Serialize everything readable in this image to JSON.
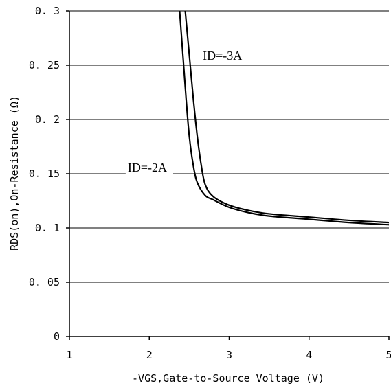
{
  "chart_data": {
    "type": "line",
    "title": "",
    "xlabel": "-VGS,Gate-to-Source Voltage (V)",
    "ylabel": "RDS(on),On-Resistance (Ω)",
    "xlim": [
      1,
      5
    ],
    "ylim": [
      0,
      0.3
    ],
    "x_ticks": [
      "1",
      "2",
      "3",
      "4",
      "5"
    ],
    "y_ticks": [
      "0",
      "0.05",
      "0.1",
      "0.15",
      "0.2",
      "0.25",
      "0.3"
    ],
    "grid": "horizontal",
    "series": [
      {
        "name": "ID=-3A",
        "x": [
          2.45,
          2.5,
          2.55,
          2.6,
          2.65,
          2.7,
          2.8,
          3.0,
          3.25,
          3.5,
          4.0,
          4.5,
          5.0
        ],
        "y": [
          0.3,
          0.26,
          0.22,
          0.185,
          0.158,
          0.14,
          0.129,
          0.121,
          0.116,
          0.113,
          0.11,
          0.107,
          0.105
        ]
      },
      {
        "name": "ID=-2A",
        "x": [
          2.38,
          2.42,
          2.46,
          2.5,
          2.55,
          2.6,
          2.7,
          2.8,
          3.0,
          3.25,
          3.5,
          4.0,
          4.5,
          5.0
        ],
        "y": [
          0.3,
          0.26,
          0.22,
          0.185,
          0.158,
          0.142,
          0.13,
          0.126,
          0.119,
          0.114,
          0.111,
          0.108,
          0.105,
          0.103
        ]
      }
    ],
    "annotations": [
      {
        "text": "ID=-3A",
        "x": 2.67,
        "y": 0.255
      },
      {
        "text": "ID=-2A",
        "x": 1.73,
        "y": 0.152
      }
    ]
  }
}
